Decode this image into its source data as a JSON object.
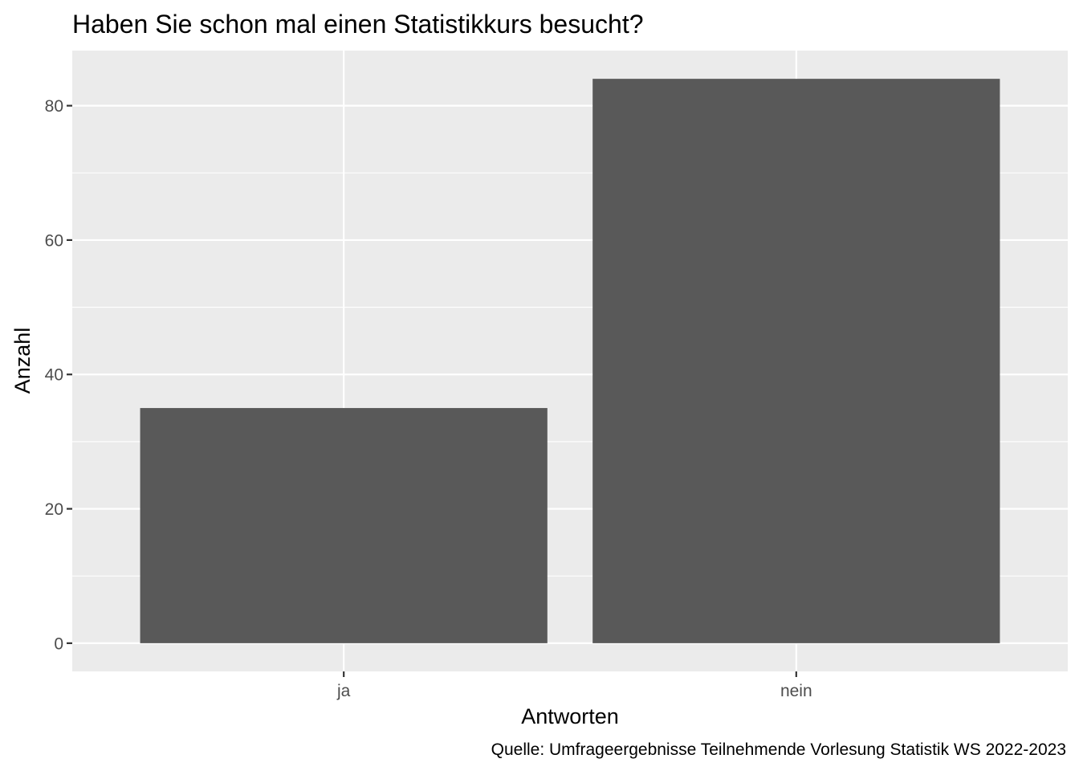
{
  "chart_data": {
    "type": "bar",
    "title": "Haben Sie schon mal einen Statistikkurs besucht?",
    "xlabel": "Antworten",
    "ylabel": "Anzahl",
    "caption": "Quelle: Umfrageergebnisse Teilnehmende Vorlesung Statistik WS 2022-2023",
    "categories": [
      "ja",
      "nein"
    ],
    "values": [
      35,
      84
    ],
    "ylim": [
      -4.2,
      88.2
    ],
    "yticks": [
      0,
      20,
      40,
      60,
      80
    ],
    "grid": true,
    "colors": {
      "panel": "#ebebeb",
      "grid": "#ffffff",
      "bar": "#595959",
      "tick": "#333333"
    }
  }
}
